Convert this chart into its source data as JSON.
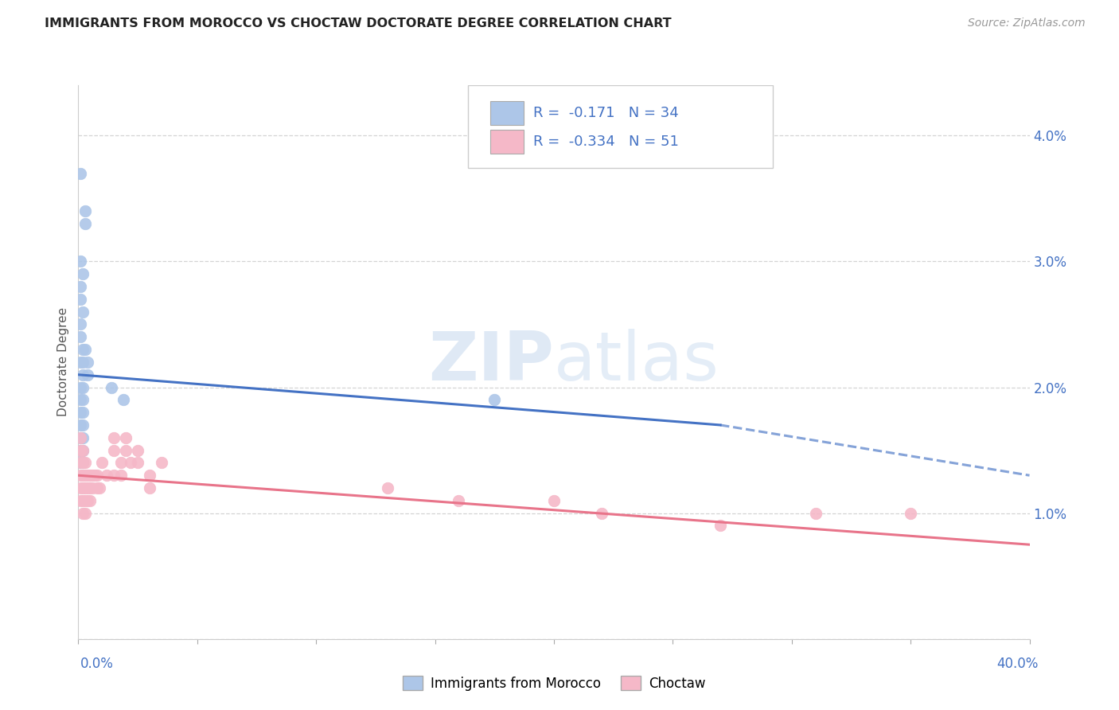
{
  "title": "IMMIGRANTS FROM MOROCCO VS CHOCTAW DOCTORATE DEGREE CORRELATION CHART",
  "source": "Source: ZipAtlas.com",
  "ylabel": "Doctorate Degree",
  "xlim": [
    0.0,
    0.4
  ],
  "ylim": [
    0.0,
    0.044
  ],
  "watermark_line1": "ZIP",
  "watermark_line2": "atlas",
  "blue_color": "#adc6e8",
  "pink_color": "#f5b8c8",
  "line_blue": "#4472c4",
  "line_pink": "#e8748a",
  "background": "#ffffff",
  "grid_color": "#d4d4d4",
  "blue_scatter": [
    [
      0.001,
      0.037
    ],
    [
      0.003,
      0.034
    ],
    [
      0.003,
      0.033
    ],
    [
      0.001,
      0.03
    ],
    [
      0.002,
      0.029
    ],
    [
      0.001,
      0.028
    ],
    [
      0.001,
      0.027
    ],
    [
      0.002,
      0.026
    ],
    [
      0.001,
      0.025
    ],
    [
      0.001,
      0.024
    ],
    [
      0.002,
      0.023
    ],
    [
      0.003,
      0.023
    ],
    [
      0.001,
      0.022
    ],
    [
      0.002,
      0.022
    ],
    [
      0.004,
      0.022
    ],
    [
      0.002,
      0.021
    ],
    [
      0.004,
      0.021
    ],
    [
      0.001,
      0.02
    ],
    [
      0.002,
      0.02
    ],
    [
      0.001,
      0.019
    ],
    [
      0.002,
      0.019
    ],
    [
      0.001,
      0.018
    ],
    [
      0.002,
      0.018
    ],
    [
      0.001,
      0.017
    ],
    [
      0.002,
      0.017
    ],
    [
      0.001,
      0.016
    ],
    [
      0.002,
      0.016
    ],
    [
      0.001,
      0.015
    ],
    [
      0.002,
      0.015
    ],
    [
      0.001,
      0.014
    ],
    [
      0.002,
      0.014
    ],
    [
      0.014,
      0.02
    ],
    [
      0.019,
      0.019
    ],
    [
      0.175,
      0.019
    ]
  ],
  "pink_scatter": [
    [
      0.001,
      0.016
    ],
    [
      0.001,
      0.015
    ],
    [
      0.001,
      0.014
    ],
    [
      0.001,
      0.013
    ],
    [
      0.001,
      0.012
    ],
    [
      0.001,
      0.011
    ],
    [
      0.002,
      0.015
    ],
    [
      0.002,
      0.014
    ],
    [
      0.002,
      0.013
    ],
    [
      0.002,
      0.012
    ],
    [
      0.002,
      0.011
    ],
    [
      0.002,
      0.01
    ],
    [
      0.003,
      0.014
    ],
    [
      0.003,
      0.013
    ],
    [
      0.003,
      0.012
    ],
    [
      0.003,
      0.011
    ],
    [
      0.003,
      0.01
    ],
    [
      0.004,
      0.013
    ],
    [
      0.004,
      0.012
    ],
    [
      0.004,
      0.011
    ],
    [
      0.005,
      0.013
    ],
    [
      0.005,
      0.012
    ],
    [
      0.005,
      0.011
    ],
    [
      0.006,
      0.013
    ],
    [
      0.006,
      0.012
    ],
    [
      0.007,
      0.013
    ],
    [
      0.008,
      0.013
    ],
    [
      0.008,
      0.012
    ],
    [
      0.009,
      0.012
    ],
    [
      0.01,
      0.014
    ],
    [
      0.012,
      0.013
    ],
    [
      0.015,
      0.016
    ],
    [
      0.015,
      0.015
    ],
    [
      0.015,
      0.013
    ],
    [
      0.018,
      0.014
    ],
    [
      0.018,
      0.013
    ],
    [
      0.02,
      0.016
    ],
    [
      0.02,
      0.015
    ],
    [
      0.022,
      0.014
    ],
    [
      0.025,
      0.015
    ],
    [
      0.025,
      0.014
    ],
    [
      0.03,
      0.013
    ],
    [
      0.03,
      0.012
    ],
    [
      0.035,
      0.014
    ],
    [
      0.13,
      0.012
    ],
    [
      0.16,
      0.011
    ],
    [
      0.2,
      0.011
    ],
    [
      0.22,
      0.01
    ],
    [
      0.27,
      0.009
    ],
    [
      0.31,
      0.01
    ],
    [
      0.35,
      0.01
    ]
  ],
  "blue_line_solid": [
    [
      0.0,
      0.021
    ],
    [
      0.27,
      0.017
    ]
  ],
  "blue_line_dashed": [
    [
      0.27,
      0.017
    ],
    [
      0.4,
      0.013
    ]
  ],
  "pink_line": [
    [
      0.0,
      0.013
    ],
    [
      0.4,
      0.0075
    ]
  ]
}
